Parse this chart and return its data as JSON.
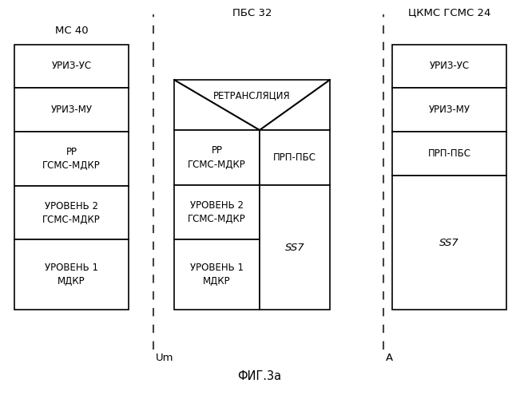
{
  "title_left": "МС 40",
  "title_mid": "ПБС 32",
  "title_right": "ЦКМС ГСМС 24",
  "label_um": "Um",
  "label_a": "A",
  "caption": "ФИГ.3а",
  "left_boxes": [
    "УРИЗ-УС",
    "УРИЗ-МУ",
    "РР\nГСМС-МДКР",
    "УРОВЕНЬ 2\nГСМС-МДКР",
    "УРОВЕНЬ 1\nМДКР"
  ],
  "mid_relay_label": "РЕТРАНСЛЯЦИЯ",
  "mid_left_boxes": [
    "РР\nГСМС-МДКР",
    "УРОВЕНЬ 2\nГСМС-МДКР",
    "УРОВЕНЬ 1\nМДКР"
  ],
  "mid_right_top_label": "ПРП-ПБС",
  "mid_right_bot_label": "SS7",
  "right_boxes": [
    "УРИЗ-УС",
    "УРИЗ-МУ",
    "ПРП-ПБС",
    "SS7"
  ],
  "bg_color": "#ffffff",
  "box_edge_color": "#000000",
  "text_color": "#000000",
  "fontsize": 8.5,
  "title_fontsize": 9.5
}
